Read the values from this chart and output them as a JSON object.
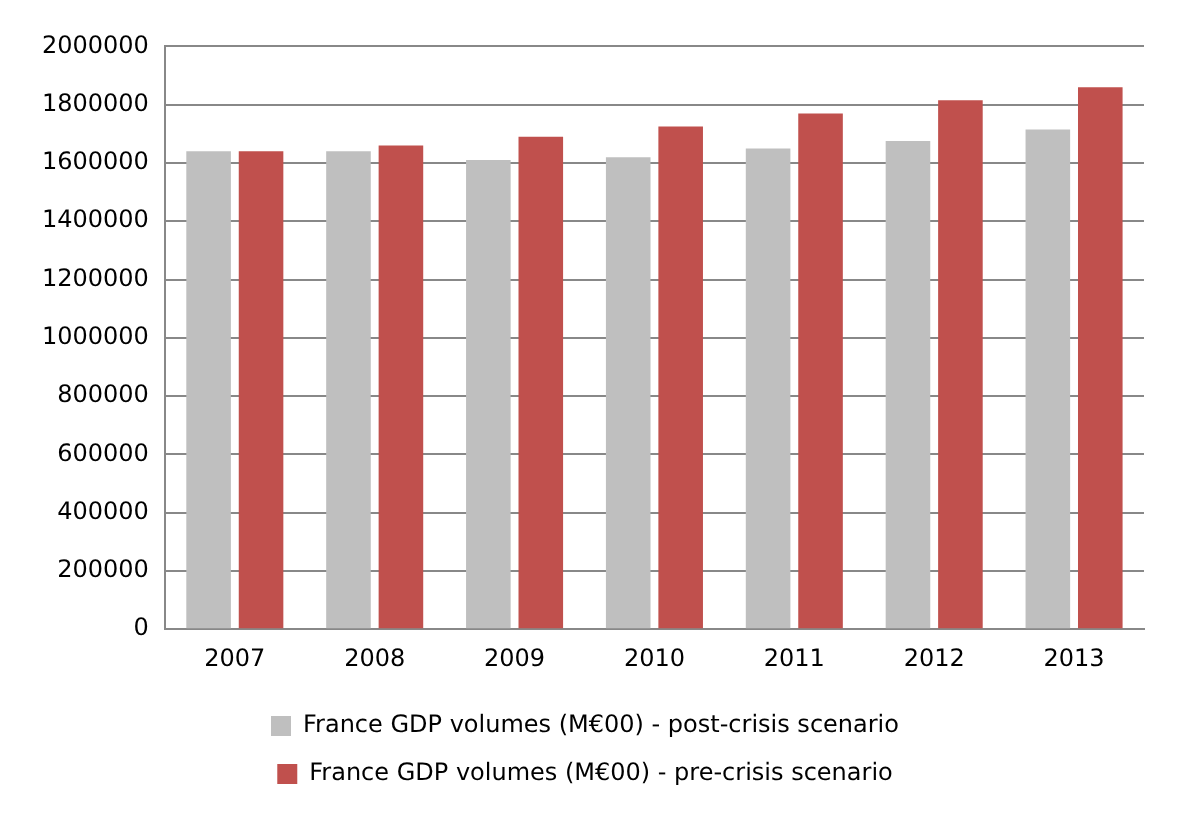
{
  "chart_data": {
    "type": "bar",
    "categories": [
      "2007",
      "2008",
      "2009",
      "2010",
      "2011",
      "2012",
      "2013"
    ],
    "series": [
      {
        "name": "France GDP volumes (M€00) - post-crisis scenario",
        "color": "#bfbfbf",
        "values": [
          1640000,
          1640000,
          1610000,
          1620000,
          1650000,
          1675000,
          1715000
        ]
      },
      {
        "name": "France GDP volumes (M€00) - pre-crisis scenario",
        "color": "#c0504d",
        "values": [
          1640000,
          1660000,
          1690000,
          1725000,
          1770000,
          1815000,
          1860000
        ]
      }
    ],
    "ylim": [
      0,
      2000000
    ],
    "yticks": [
      0,
      200000,
      400000,
      600000,
      800000,
      1000000,
      1200000,
      1400000,
      1600000,
      1800000,
      2000000
    ],
    "grid": "y",
    "legend": "bottom"
  }
}
